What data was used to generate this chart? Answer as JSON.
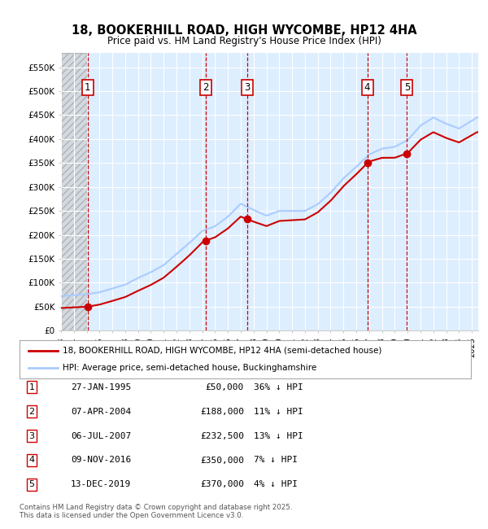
{
  "title_line1": "18, BOOKERHILL ROAD, HIGH WYCOMBE, HP12 4HA",
  "title_line2": "Price paid vs. HM Land Registry's House Price Index (HPI)",
  "ylim": [
    0,
    580000
  ],
  "yticks": [
    0,
    50000,
    100000,
    150000,
    200000,
    250000,
    300000,
    350000,
    400000,
    450000,
    500000,
    550000
  ],
  "ytick_labels": [
    "£0",
    "£50K",
    "£100K",
    "£150K",
    "£200K",
    "£250K",
    "£300K",
    "£350K",
    "£400K",
    "£450K",
    "£500K",
    "£550K"
  ],
  "background_color": "#ffffff",
  "chart_bg_color": "#ddeeff",
  "hatch_area_end_year": 1995.05,
  "sale_markers": [
    {
      "num": 1,
      "year": 1995.07,
      "price": 50000,
      "date": "27-JAN-1995",
      "pct": "36%"
    },
    {
      "num": 2,
      "year": 2004.27,
      "price": 188000,
      "date": "07-APR-2004",
      "pct": "11%"
    },
    {
      "num": 3,
      "year": 2007.51,
      "price": 232500,
      "date": "06-JUL-2007",
      "pct": "13%"
    },
    {
      "num": 4,
      "year": 2016.86,
      "price": 350000,
      "date": "09-NOV-2016",
      "pct": "7%"
    },
    {
      "num": 5,
      "year": 2019.95,
      "price": 370000,
      "date": "13-DEC-2019",
      "pct": "4%"
    }
  ],
  "hpi_years": [
    1993,
    1994,
    1995,
    1996,
    1997,
    1998,
    1999,
    2000,
    2001,
    2002,
    2003,
    2004,
    2005,
    2006,
    2007,
    2008,
    2009,
    2010,
    2011,
    2012,
    2013,
    2014,
    2015,
    2016,
    2017,
    2018,
    2019,
    2020,
    2021,
    2022,
    2023,
    2024,
    2025.4
  ],
  "hpi_prices": [
    72000,
    74000,
    76000,
    80000,
    88000,
    96000,
    110000,
    122000,
    137000,
    160000,
    183000,
    208000,
    218000,
    238000,
    265000,
    252000,
    240000,
    250000,
    250000,
    250000,
    264000,
    288000,
    318000,
    342000,
    368000,
    380000,
    384000,
    398000,
    428000,
    445000,
    432000,
    422000,
    445000
  ],
  "hpi_line_color": "#aaccff",
  "price_line_color": "#cc0000",
  "marker_color": "#cc0000",
  "vline_color": "#cc0000",
  "marker_box_color": "#cc0000",
  "legend_entries": [
    "18, BOOKERHILL ROAD, HIGH WYCOMBE, HP12 4HA (semi-detached house)",
    "HPI: Average price, semi-detached house, Buckinghamshire"
  ],
  "footer_text": "Contains HM Land Registry data © Crown copyright and database right 2025.\nThis data is licensed under the Open Government Licence v3.0.",
  "xmin": 1993.0,
  "xmax": 2025.5
}
